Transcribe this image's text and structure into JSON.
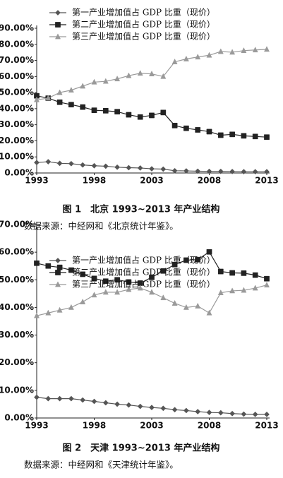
{
  "chart_data": [
    {
      "type": "line",
      "x": [
        1993,
        1994,
        1995,
        1996,
        1997,
        1998,
        1999,
        2000,
        2001,
        2002,
        2003,
        2004,
        2005,
        2006,
        2007,
        2008,
        2009,
        2010,
        2011,
        2012,
        2013
      ],
      "xlim": [
        1993,
        2013
      ],
      "xticks": [
        1993,
        1998,
        2003,
        2008,
        2013
      ],
      "ylim": [
        0,
        90
      ],
      "yticks": [
        {
          "value": 0,
          "label": "0.00%"
        },
        {
          "value": 10,
          "label": "10.00%"
        },
        {
          "value": 20,
          "label": "20.00%"
        },
        {
          "value": 30,
          "label": "30.00%"
        },
        {
          "value": 40,
          "label": "40.00%"
        },
        {
          "value": 50,
          "label": "50.00%"
        },
        {
          "value": 60,
          "label": "60.00%"
        },
        {
          "value": 70,
          "label": "70.00%"
        },
        {
          "value": 80,
          "label": "80.00%"
        },
        {
          "value": 90,
          "label": "90.00%"
        }
      ],
      "series": [
        {
          "name": "第一产业增加值占 GDP 比重（现价）",
          "color": "#555555",
          "marker": "diamond",
          "values": [
            6.5,
            7,
            6,
            5.8,
            5,
            4.5,
            4.2,
            3.6,
            3.3,
            3.1,
            2.6,
            2.4,
            1.4,
            1.3,
            1.1,
            1.0,
            1.0,
            0.9,
            0.8,
            0.8,
            0.8
          ]
        },
        {
          "name": "第二产业增加值占 GDP 比重（现价）",
          "color": "#222222",
          "marker": "square",
          "values": [
            48,
            46.5,
            44,
            42.5,
            41,
            39,
            38.7,
            38.1,
            36.2,
            34.8,
            35.8,
            37.6,
            29.5,
            27.8,
            26.8,
            25.7,
            23.5,
            24,
            23.1,
            22.7,
            22.3
          ]
        },
        {
          "name": "第三产业增加值占 GDP 比重（现价）",
          "color": "#9a9a9a",
          "marker": "triangle",
          "values": [
            45.5,
            46.5,
            50,
            51.5,
            54,
            56.5,
            57,
            58.5,
            60.5,
            62,
            61.6,
            60,
            69.1,
            70.9,
            72.1,
            73.2,
            75.5,
            75.1,
            76.1,
            76.5,
            76.9
          ]
        }
      ],
      "caption": "图 1　北京 1993~2013 年产业结构",
      "source": "数据来源：中经网和《北京统计年鉴》。"
    },
    {
      "type": "line",
      "x": [
        1993,
        1994,
        1995,
        1996,
        1997,
        1998,
        1999,
        2000,
        2001,
        2002,
        2003,
        2004,
        2005,
        2006,
        2007,
        2008,
        2009,
        2010,
        2011,
        2012,
        2013
      ],
      "xlim": [
        1993,
        2013
      ],
      "xticks": [
        1993,
        1998,
        2003,
        2008,
        2013
      ],
      "ylim": [
        0,
        70
      ],
      "yticks": [
        {
          "value": 0,
          "label": "0.00%"
        },
        {
          "value": 10,
          "label": "10.00%"
        },
        {
          "value": 20,
          "label": "20.00%"
        },
        {
          "value": 30,
          "label": "30.00%"
        },
        {
          "value": 40,
          "label": "40.00%"
        },
        {
          "value": 50,
          "label": "50.00%"
        },
        {
          "value": 60,
          "label": "60.00%"
        },
        {
          "value": 70,
          "label": "70.00%"
        }
      ],
      "series": [
        {
          "name": "第一产业增加值占 GDP 比重（现价）",
          "color": "#555555",
          "marker": "diamond",
          "values": [
            7.5,
            7,
            7,
            7,
            6.5,
            6,
            5.5,
            5,
            4.7,
            4.2,
            3.8,
            3.5,
            3,
            2.7,
            2.3,
            2,
            1.9,
            1.6,
            1.4,
            1.3,
            1.3
          ]
        },
        {
          "name": "第二产业增加值占 GDP 比重（现价）",
          "color": "#222222",
          "marker": "square",
          "values": [
            56,
            55,
            54.5,
            53.5,
            52,
            50.5,
            49.5,
            50,
            49.2,
            48.8,
            50.9,
            53.2,
            55.5,
            57.1,
            57.3,
            60.1,
            53,
            52.5,
            52.4,
            51.7,
            50.4
          ]
        },
        {
          "name": "第三产业增加值占 GDP 比重（现价）",
          "color": "#9a9a9a",
          "marker": "triangle",
          "values": [
            37,
            38,
            39,
            40,
            42,
            44.5,
            45.5,
            45.5,
            46.5,
            47,
            45.5,
            43.5,
            41.5,
            40,
            40.5,
            38,
            45.3,
            46,
            46.2,
            47,
            48.1
          ]
        }
      ],
      "caption": "图 2　天津 1993~2013 年产业结构",
      "source": "数据来源：中经网和《天津统计年鉴》。"
    }
  ]
}
